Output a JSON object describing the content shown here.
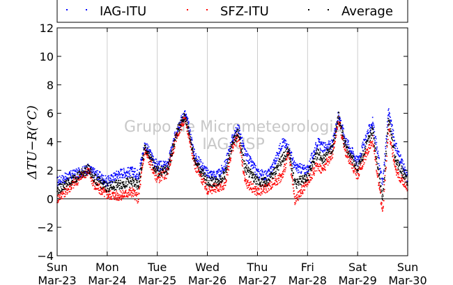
{
  "watermark": {
    "line1": "Grupo de Micrometeorologia",
    "line2": "IAG-USP"
  },
  "chart_data": {
    "type": "scatter",
    "title": "",
    "xlabel": "",
    "ylabel": "ΔT_{U-R}(°C)",
    "ylabel_display": "ΔTU−R(°C)",
    "ylim": [
      -4,
      12
    ],
    "yticks": [
      -4,
      -2,
      0,
      2,
      4,
      6,
      8,
      10,
      12
    ],
    "ytick_labels": [
      "−4",
      "−2",
      "0",
      "2",
      "4",
      "6",
      "8",
      "10",
      "12"
    ],
    "xlim": [
      "Mar-23",
      "Mar-30"
    ],
    "x_ticks": [
      {
        "day": "Sun",
        "date": "Mar-23"
      },
      {
        "day": "Mon",
        "date": "Mar-24"
      },
      {
        "day": "Tue",
        "date": "Mar-25"
      },
      {
        "day": "Wed",
        "date": "Mar-26"
      },
      {
        "day": "Thu",
        "date": "Mar-27"
      },
      {
        "day": "Fri",
        "date": "Mar-28"
      },
      {
        "day": "Sat",
        "date": "Mar-29"
      },
      {
        "day": "Sun",
        "date": "Mar-30"
      }
    ],
    "grid": "vertical",
    "zero_line": true,
    "legend_position": "top",
    "x_unit": "days from Mar-23 00:00",
    "series": [
      {
        "name": "IAG-ITU",
        "color": "#0000ff",
        "x": [
          0.0,
          0.25,
          0.5,
          0.62,
          0.75,
          1.0,
          1.25,
          1.5,
          1.62,
          1.75,
          2.0,
          2.2,
          2.4,
          2.55,
          2.62,
          2.75,
          3.0,
          3.2,
          3.35,
          3.5,
          3.62,
          3.75,
          4.0,
          4.2,
          4.35,
          4.5,
          4.62,
          4.75,
          5.0,
          5.2,
          5.3,
          5.5,
          5.62,
          5.75,
          6.0,
          6.2,
          6.3,
          6.5,
          6.62,
          6.75,
          7.0
        ],
        "y": [
          1.2,
          1.6,
          1.9,
          2.1,
          1.8,
          1.2,
          1.8,
          1.9,
          1.7,
          3.8,
          2.3,
          2.3,
          5.0,
          6.0,
          5.2,
          3.0,
          1.8,
          1.6,
          2.3,
          4.2,
          5.0,
          3.2,
          1.8,
          1.6,
          2.6,
          4.0,
          3.6,
          2.2,
          2.0,
          4.0,
          3.6,
          3.8,
          6.0,
          4.2,
          2.6,
          4.6,
          5.4,
          1.0,
          6.2,
          3.8,
          1.4
        ]
      },
      {
        "name": "SFZ-ITU",
        "color": "#ff0000",
        "x": [
          0.0,
          0.25,
          0.5,
          0.62,
          0.75,
          1.0,
          1.25,
          1.5,
          1.62,
          1.75,
          2.0,
          2.2,
          2.4,
          2.55,
          2.62,
          2.75,
          3.0,
          3.2,
          3.35,
          3.5,
          3.62,
          3.75,
          4.0,
          4.2,
          4.35,
          4.5,
          4.62,
          4.75,
          5.0,
          5.2,
          5.3,
          5.5,
          5.62,
          5.75,
          6.0,
          6.2,
          6.3,
          6.5,
          6.62,
          6.75,
          7.0
        ],
        "y": [
          0.0,
          0.8,
          1.6,
          2.0,
          0.9,
          0.3,
          0.2,
          0.5,
          0.0,
          3.4,
          1.4,
          1.8,
          4.6,
          5.6,
          4.6,
          2.4,
          0.6,
          0.8,
          1.0,
          3.6,
          4.4,
          1.2,
          0.5,
          0.8,
          1.2,
          1.6,
          3.2,
          -0.2,
          1.2,
          2.4,
          2.0,
          3.2,
          5.6,
          3.4,
          1.6,
          3.4,
          4.2,
          -1.0,
          5.0,
          2.0,
          0.8
        ]
      },
      {
        "name": "Average",
        "color": "#000000",
        "x": [
          0.0,
          0.25,
          0.5,
          0.62,
          0.75,
          1.0,
          1.25,
          1.5,
          1.62,
          1.75,
          2.0,
          2.2,
          2.4,
          2.55,
          2.62,
          2.75,
          3.0,
          3.2,
          3.35,
          3.5,
          3.62,
          3.75,
          4.0,
          4.2,
          4.35,
          4.5,
          4.62,
          4.75,
          5.0,
          5.2,
          5.3,
          5.5,
          5.62,
          5.75,
          6.0,
          6.2,
          6.3,
          6.5,
          6.62,
          6.75,
          7.0
        ],
        "y": [
          0.6,
          1.2,
          1.8,
          2.1,
          1.4,
          0.8,
          1.0,
          1.2,
          0.9,
          3.6,
          1.9,
          2.0,
          4.8,
          5.8,
          4.9,
          2.7,
          1.2,
          1.2,
          1.7,
          3.9,
          4.7,
          2.2,
          1.2,
          1.2,
          1.9,
          2.8,
          3.4,
          1.0,
          1.6,
          3.2,
          2.8,
          3.5,
          5.8,
          3.8,
          2.1,
          4.0,
          4.8,
          0.0,
          5.6,
          2.9,
          1.1
        ]
      }
    ]
  }
}
